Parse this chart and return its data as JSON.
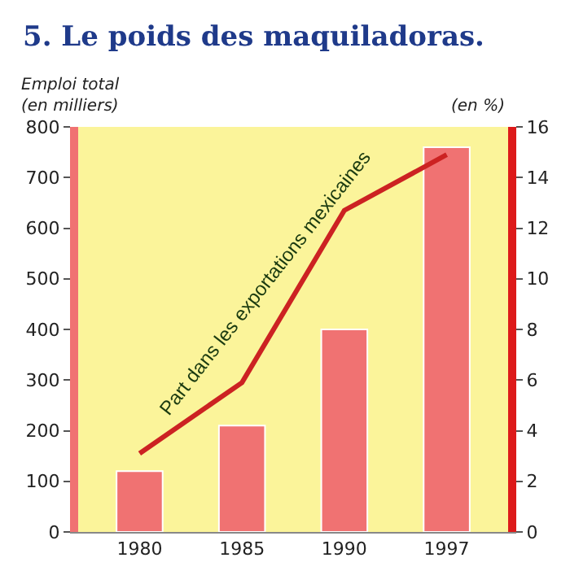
{
  "chart_data": {
    "type": "bar",
    "title": "5. Le poids des maquiladoras.",
    "ylabel": "Emploi total\n(en milliers)",
    "y2label": "(en %)",
    "categories": [
      "1980",
      "1985",
      "1990",
      "1997"
    ],
    "series": [
      {
        "color": "#f07272",
        "values": [
          120,
          210,
          400,
          760
        ]
      },
      {
        "type": "line",
        "name": "Part dans les exportations mexicaines",
        "axis": "y2",
        "color": "#cc2222",
        "values": [
          3.1,
          5.9,
          12.7,
          14.9
        ]
      }
    ],
    "ylim": [
      0,
      800
    ],
    "yticks": [
      0,
      100,
      200,
      300,
      400,
      500,
      600,
      700,
      800
    ],
    "y2lim": [
      0,
      16
    ],
    "y2ticks": [
      0,
      2,
      4,
      6,
      8,
      10,
      12,
      14,
      16
    ],
    "grid": false,
    "legend": false,
    "marker": "none"
  }
}
